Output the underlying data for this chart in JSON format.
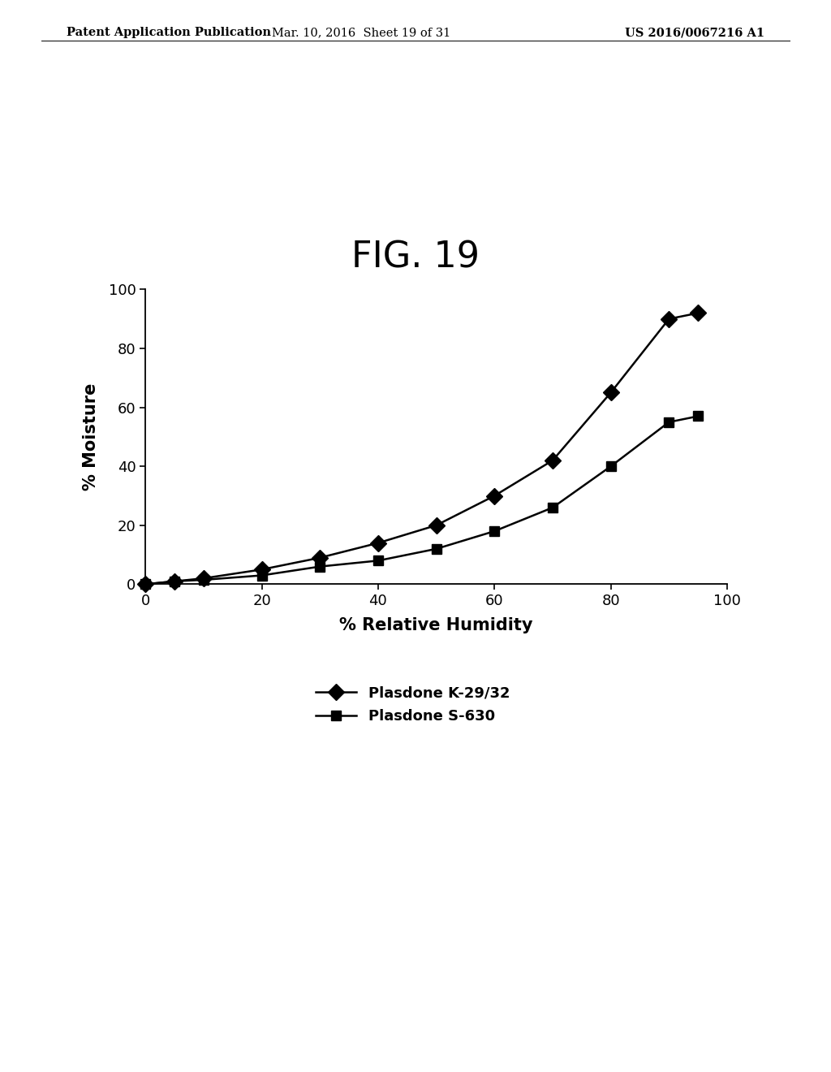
{
  "title": "FIG. 19",
  "header_left": "Patent Application Publication",
  "header_mid": "Mar. 10, 2016  Sheet 19 of 31",
  "header_right": "US 2016/0067216 A1",
  "xlabel": "% Relative Humidity",
  "ylabel": "% Moisture",
  "xlim": [
    0,
    100
  ],
  "ylim": [
    0,
    100
  ],
  "xticks": [
    0,
    20,
    40,
    60,
    80,
    100
  ],
  "yticks": [
    0,
    20,
    40,
    60,
    80,
    100
  ],
  "series1_name": "Plasdone K-29/32",
  "series1_x": [
    0,
    5,
    10,
    20,
    30,
    40,
    50,
    60,
    70,
    80,
    90,
    95
  ],
  "series1_y": [
    0,
    1,
    2,
    5,
    9,
    14,
    20,
    30,
    42,
    65,
    90,
    92
  ],
  "series2_name": "Plasdone S-630",
  "series2_x": [
    0,
    5,
    10,
    20,
    30,
    40,
    50,
    60,
    70,
    80,
    90,
    95
  ],
  "series2_y": [
    0,
    1,
    1.5,
    3,
    6,
    8,
    12,
    18,
    26,
    40,
    55,
    57
  ],
  "line_color": "#000000",
  "marker1": "D",
  "marker2": "s",
  "marker_size1": 10,
  "marker_size2": 9,
  "linewidth": 1.8,
  "background_color": "#ffffff",
  "title_fontsize": 32,
  "axis_label_fontsize": 15,
  "tick_fontsize": 13,
  "legend_fontsize": 13,
  "header_fontsize": 10.5
}
